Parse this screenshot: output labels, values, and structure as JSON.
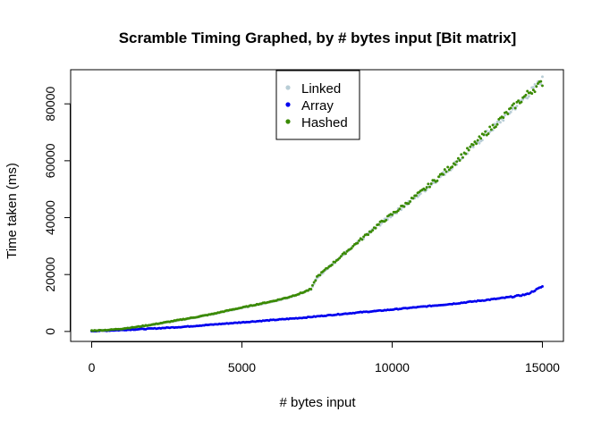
{
  "chart_data": {
    "type": "scatter",
    "title": "Scramble Timing Graphed, by # bytes input [Bit matrix]",
    "xlabel": "# bytes input",
    "ylabel": "Time taken (ms)",
    "xlim": [
      -700,
      15700
    ],
    "ylim": [
      -3500,
      92000
    ],
    "xticks": [
      0,
      5000,
      10000,
      15000
    ],
    "yticks": [
      0,
      20000,
      40000,
      60000,
      80000
    ],
    "legend_position": "top-center",
    "x": [
      0,
      500,
      1000,
      1500,
      2000,
      2500,
      3000,
      3500,
      4000,
      4500,
      5000,
      5500,
      6000,
      6500,
      7000,
      7300,
      7500,
      8000,
      8500,
      9000,
      9500,
      10000,
      10500,
      11000,
      11500,
      12000,
      12500,
      13000,
      13500,
      14000,
      14500,
      15000
    ],
    "series": [
      {
        "name": "Linked",
        "color": "#b8cdd6",
        "values": [
          300,
          450,
          900,
          1500,
          2300,
          3200,
          4100,
          5000,
          6000,
          7200,
          8300,
          9400,
          10500,
          11800,
          13500,
          14800,
          19000,
          23500,
          28000,
          32500,
          37000,
          41000,
          45000,
          49000,
          53500,
          58000,
          63000,
          68000,
          73000,
          78000,
          83000,
          88500
        ]
      },
      {
        "name": "Array",
        "color": "#0000ee",
        "values": [
          150,
          300,
          500,
          750,
          1000,
          1300,
          1600,
          2000,
          2400,
          2800,
          3200,
          3600,
          4000,
          4400,
          4800,
          5100,
          5300,
          5800,
          6300,
          6800,
          7200,
          7700,
          8200,
          8700,
          9200,
          9700,
          10300,
          10900,
          11500,
          12200,
          13100,
          15800
        ]
      },
      {
        "name": "Hashed",
        "color": "#3a8a00",
        "values": [
          300,
          500,
          950,
          1600,
          2400,
          3300,
          4200,
          5100,
          6100,
          7300,
          8400,
          9500,
          10600,
          11900,
          13600,
          14900,
          19200,
          23700,
          28200,
          32700,
          37200,
          41200,
          45200,
          49300,
          53800,
          58500,
          63500,
          68500,
          73500,
          78500,
          83500,
          87500
        ]
      }
    ]
  }
}
